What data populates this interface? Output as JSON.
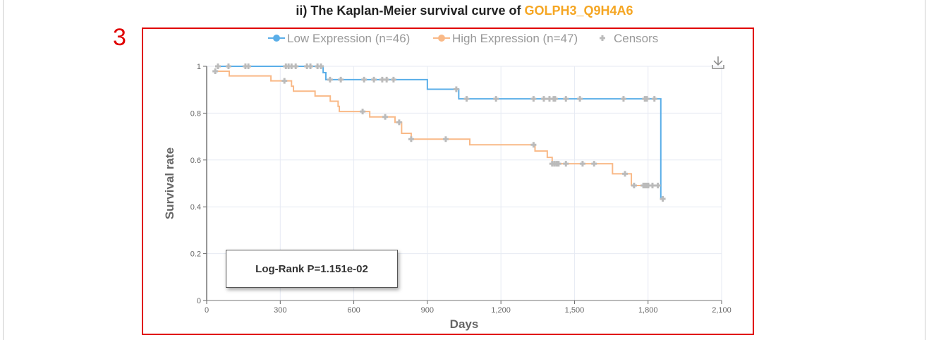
{
  "header": {
    "title_prefix": "ii) The Kaplan-Meier survival curve of ",
    "gene": "GOLPH3_Q9H4A6",
    "panel_number": "3"
  },
  "colors": {
    "low": "#5aaee8",
    "high": "#f9b987",
    "censor": "#bbbbbb",
    "gene": "#f5a623",
    "panel_border": "#e00000"
  },
  "download_icon": "download-icon",
  "chart_data": {
    "type": "line",
    "xlabel": "Days",
    "ylabel": "Survival rate",
    "xlim": [
      0,
      2100
    ],
    "ylim": [
      0,
      1
    ],
    "xticks": [
      0,
      300,
      600,
      900,
      1200,
      1500,
      1800,
      2100
    ],
    "xtick_labels": [
      "0",
      "300",
      "600",
      "900",
      "1,200",
      "1,500",
      "1,800",
      "2,100"
    ],
    "yticks": [
      0,
      0.2,
      0.4,
      0.6,
      0.8,
      1
    ],
    "ytick_labels": [
      "0",
      "0.2",
      "0.4",
      "0.6",
      "0.8",
      "1"
    ],
    "grid": true,
    "legend_position": "top-center",
    "legend": [
      "Low Expression (n=46)",
      "High Expression (n=47)",
      "Censors"
    ],
    "annotation": "Log-Rank P=1.151e-02",
    "series": [
      {
        "name": "Low Expression (n=46)",
        "start": [
          40,
          1.0
        ],
        "steps": [
          [
            475,
            0.973
          ],
          [
            486,
            0.943
          ],
          [
            900,
            0.902
          ],
          [
            1028,
            0.861
          ],
          [
            1852,
            0.434
          ]
        ],
        "end": 1860,
        "censors": [
          [
            46,
            1
          ],
          [
            89,
            1
          ],
          [
            158,
            1
          ],
          [
            170,
            1
          ],
          [
            323,
            1
          ],
          [
            334,
            1
          ],
          [
            346,
            1
          ],
          [
            363,
            1
          ],
          [
            409,
            1
          ],
          [
            423,
            1
          ],
          [
            452,
            1
          ],
          [
            466,
            1
          ],
          [
            503,
            0.943
          ],
          [
            547,
            0.943
          ],
          [
            642,
            0.943
          ],
          [
            682,
            0.943
          ],
          [
            716,
            0.943
          ],
          [
            734,
            0.943
          ],
          [
            762,
            0.943
          ],
          [
            1018,
            0.902
          ],
          [
            1060,
            0.861
          ],
          [
            1180,
            0.861
          ],
          [
            1333,
            0.861
          ],
          [
            1375,
            0.861
          ],
          [
            1398,
            0.861
          ],
          [
            1415,
            0.861
          ],
          [
            1421,
            0.861
          ],
          [
            1465,
            0.861
          ],
          [
            1522,
            0.861
          ],
          [
            1700,
            0.861
          ],
          [
            1787,
            0.861
          ],
          [
            1795,
            0.861
          ],
          [
            1826,
            0.861
          ],
          [
            1860,
            0.434
          ]
        ]
      },
      {
        "name": "High Expression (n=47)",
        "start": [
          35,
          0.979
        ],
        "steps": [
          [
            92,
            0.959
          ],
          [
            262,
            0.938
          ],
          [
            346,
            0.915
          ],
          [
            354,
            0.894
          ],
          [
            442,
            0.873
          ],
          [
            504,
            0.851
          ],
          [
            536,
            0.829
          ],
          [
            541,
            0.807
          ],
          [
            665,
            0.784
          ],
          [
            768,
            0.761
          ],
          [
            795,
            0.714
          ],
          [
            834,
            0.689
          ],
          [
            1073,
            0.665
          ],
          [
            1339,
            0.638
          ],
          [
            1389,
            0.611
          ],
          [
            1409,
            0.584
          ],
          [
            1655,
            0.541
          ],
          [
            1732,
            0.491
          ]
        ],
        "end": 1840,
        "censors": [
          [
            35,
            0.979
          ],
          [
            317,
            0.938
          ],
          [
            636,
            0.807
          ],
          [
            728,
            0.784
          ],
          [
            785,
            0.761
          ],
          [
            834,
            0.689
          ],
          [
            975,
            0.689
          ],
          [
            1333,
            0.665
          ],
          [
            1409,
            0.584
          ],
          [
            1418,
            0.584
          ],
          [
            1427,
            0.584
          ],
          [
            1435,
            0.584
          ],
          [
            1465,
            0.584
          ],
          [
            1533,
            0.584
          ],
          [
            1580,
            0.584
          ],
          [
            1706,
            0.541
          ],
          [
            1743,
            0.491
          ],
          [
            1781,
            0.491
          ],
          [
            1787,
            0.491
          ],
          [
            1795,
            0.491
          ],
          [
            1801,
            0.491
          ],
          [
            1818,
            0.491
          ],
          [
            1840,
            0.491
          ]
        ]
      }
    ]
  }
}
